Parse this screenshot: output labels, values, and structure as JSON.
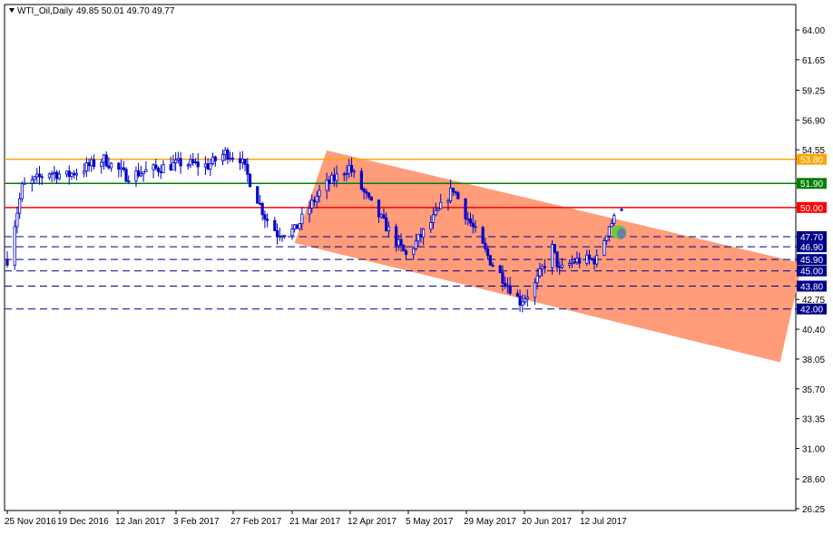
{
  "header": {
    "symbol_label": "WTI_Oil,Daily",
    "ohlc_label": "49.85 50.01 49.70 49.77"
  },
  "colors": {
    "background": "#ffffff",
    "frame": "#000000",
    "candle": "#0000cc",
    "channel_fill": "#ff9c7a",
    "resistance_orange": "#ffa500",
    "resistance_green": "#008000",
    "resistance_red": "#ff0000",
    "support_dashed": "#00008b",
    "ellipse_green": "#66cc33",
    "ellipse_slate": "#6a7fa8"
  },
  "chart_data": {
    "type": "candlestick",
    "instrument": "WTI_Oil",
    "timeframe": "Daily",
    "ylim": [
      26.25,
      65.8
    ],
    "y_ticks": [
      "64.00",
      "61.65",
      "59.25",
      "56.90",
      "54.55",
      "53.80",
      "51.90",
      "50.00",
      "47.70",
      "46.90",
      "45.90",
      "45.00",
      "43.80",
      "42.75",
      "42.00",
      "40.40",
      "38.05",
      "35.70",
      "33.35",
      "31.00",
      "28.60",
      "26.25"
    ],
    "x_labels": [
      "25 Nov 2016",
      "19 Dec 2016",
      "12 Jan 2017",
      "3 Feb 2017",
      "27 Feb 2017",
      "21 Mar 2017",
      "12 Apr 2017",
      "5 May 2017",
      "29 May 2017",
      "20 Jun 2017",
      "12 Jul 2017"
    ],
    "last_ohlc": {
      "open": 49.85,
      "high": 50.01,
      "low": 49.7,
      "close": 49.77
    },
    "horizontal_levels": [
      {
        "value": 53.8,
        "label": "53.80",
        "style": "solid",
        "color": "#ffa500"
      },
      {
        "value": 51.9,
        "label": "51.90",
        "style": "solid",
        "color": "#008000"
      },
      {
        "value": 50.0,
        "label": "50.00",
        "style": "solid",
        "color": "#ff0000"
      },
      {
        "value": 47.7,
        "label": "47.70",
        "style": "dashed",
        "color": "#00008b"
      },
      {
        "value": 46.9,
        "label": "46.90",
        "style": "dashed",
        "color": "#00008b"
      },
      {
        "value": 45.9,
        "label": "45.90",
        "style": "dashed",
        "color": "#00008b"
      },
      {
        "value": 45.0,
        "label": "45.00",
        "style": "dashed",
        "color": "#00008b"
      },
      {
        "value": 43.8,
        "label": "43.80",
        "style": "dashed",
        "color": "#00008b"
      },
      {
        "value": 42.0,
        "label": "42.00",
        "style": "dashed",
        "color": "#00008b"
      }
    ],
    "price_path": [
      {
        "date": "2016-11-25",
        "price": 45.9
      },
      {
        "date": "2016-12-01",
        "price": 51.6
      },
      {
        "date": "2016-12-12",
        "price": 52.8
      },
      {
        "date": "2016-12-19",
        "price": 52.5
      },
      {
        "date": "2017-01-03",
        "price": 53.8
      },
      {
        "date": "2017-01-12",
        "price": 52.5
      },
      {
        "date": "2017-01-23",
        "price": 53.0
      },
      {
        "date": "2017-02-03",
        "price": 53.5
      },
      {
        "date": "2017-02-14",
        "price": 53.3
      },
      {
        "date": "2017-02-21",
        "price": 54.3
      },
      {
        "date": "2017-02-27",
        "price": 53.9
      },
      {
        "date": "2017-03-09",
        "price": 49.3
      },
      {
        "date": "2017-03-14",
        "price": 48.0
      },
      {
        "date": "2017-03-21",
        "price": 48.2
      },
      {
        "date": "2017-04-01",
        "price": 51.5
      },
      {
        "date": "2017-04-12",
        "price": 53.2
      },
      {
        "date": "2017-04-20",
        "price": 50.5
      },
      {
        "date": "2017-05-05",
        "price": 46.2
      },
      {
        "date": "2017-05-15",
        "price": 48.8
      },
      {
        "date": "2017-05-24",
        "price": 51.5
      },
      {
        "date": "2017-05-29",
        "price": 49.5
      },
      {
        "date": "2017-06-08",
        "price": 45.8
      },
      {
        "date": "2017-06-20",
        "price": 42.6
      },
      {
        "date": "2017-06-25",
        "price": 43.5
      },
      {
        "date": "2017-07-03",
        "price": 46.8
      },
      {
        "date": "2017-07-06",
        "price": 45.0
      },
      {
        "date": "2017-07-12",
        "price": 45.8
      },
      {
        "date": "2017-07-21",
        "price": 45.9
      },
      {
        "date": "2017-07-26",
        "price": 48.6
      },
      {
        "date": "2017-07-31",
        "price": 49.77
      }
    ],
    "channel": {
      "upper_start": {
        "date": "2017-04-03",
        "price": 54.5
      },
      "upper_end": {
        "date": "2017-10-12",
        "price": 45.6
      },
      "lower_start": {
        "date": "2017-03-21",
        "price": 47.2
      },
      "lower_end": {
        "date": "2017-10-03",
        "price": 37.8
      }
    },
    "gap_zone": {
      "from": "2017-07-27",
      "to": "2017-08-02",
      "price_top": 48.6,
      "price_bottom": 47.5
    },
    "grid": false
  }
}
